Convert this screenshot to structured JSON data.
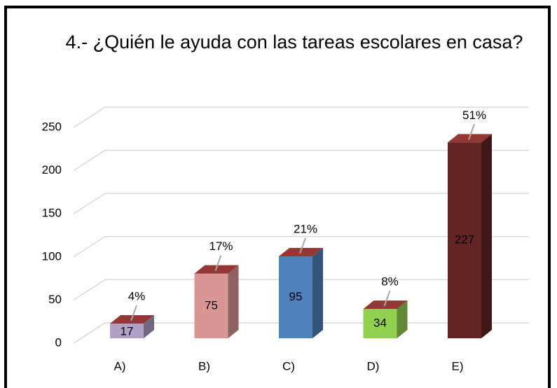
{
  "chart_data": {
    "type": "bar3d",
    "title": "4.- ¿Quién le ayuda con las tareas escolares en casa?",
    "categories": [
      "A)",
      "B)",
      "C)",
      "D)",
      "E)"
    ],
    "values": [
      17,
      75,
      95,
      34,
      227
    ],
    "percent_labels": [
      "4%",
      "17%",
      "21%",
      "8%",
      "51%"
    ],
    "colors": [
      "#b1a0c7",
      "#da9694",
      "#4f81bd",
      "#92d050",
      "#632523"
    ],
    "top_color": "#953735",
    "ylim": [
      0,
      250
    ],
    "yticks": [
      0,
      50,
      100,
      150,
      200,
      250
    ],
    "grid": true
  }
}
